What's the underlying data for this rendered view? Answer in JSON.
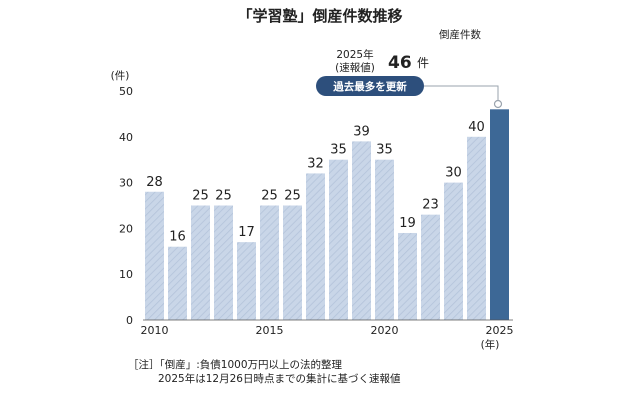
{
  "chart_data": {
    "type": "bar",
    "title": "「学習塾」倒産件数推移",
    "subtitle": "倒産件数",
    "yunit": "(件)",
    "xunit": "(年)",
    "ylim": [
      0,
      50
    ],
    "yticks": [
      0,
      10,
      20,
      30,
      40,
      50
    ],
    "categories": [
      "2010",
      "2011",
      "2012",
      "2013",
      "2014",
      "2015",
      "2016",
      "2017",
      "2018",
      "2019",
      "2020",
      "2021",
      "2022",
      "2023",
      "2024",
      "2025"
    ],
    "xtick_labels": [
      "2010",
      "2015",
      "2020",
      "2025"
    ],
    "values": [
      28,
      16,
      25,
      25,
      17,
      25,
      25,
      32,
      35,
      39,
      35,
      19,
      23,
      30,
      40,
      46
    ],
    "data_labels": [
      "28",
      "16",
      "25",
      "25",
      "17",
      "25",
      "25",
      "32",
      "35",
      "39",
      "35",
      "19",
      "23",
      "30",
      "40",
      ""
    ],
    "highlight_index": 15,
    "annotation": {
      "line1": "2025年",
      "line2": "(速報値)",
      "value": "46",
      "unit": "件",
      "badge": "過去最多を更新"
    },
    "notes": [
      "［注］「倒産」:負債1000万円以上の法的整理",
      "2025年は12月26日時点までの集計に基づく速報値"
    ],
    "colors": {
      "bar": "#c9d6e8",
      "bar_hatch": "#b3c3da",
      "highlight": "#3d6896",
      "badge": "#2d4f7c",
      "connector": "#9aa3ad"
    }
  }
}
